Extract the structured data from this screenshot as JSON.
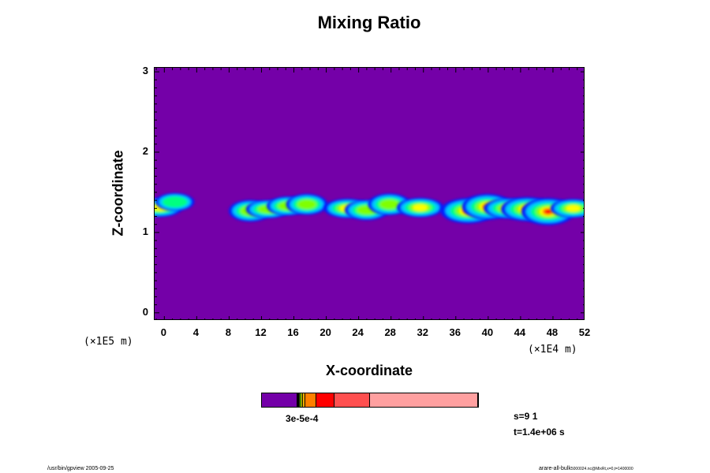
{
  "chart_data": {
    "type": "heatmap",
    "title": "Mixing Ratio",
    "xlabel": "X-coordinate",
    "ylabel": "Z-coordinate",
    "x_scale_note": "(×1E4 m)",
    "y_scale_note": "(×1E5 m)",
    "x_ticks": [
      "0",
      "4",
      "8",
      "12",
      "16",
      "20",
      "24",
      "28",
      "32",
      "36",
      "40",
      "44",
      "48",
      "52"
    ],
    "y_ticks": [
      "0",
      "1",
      "2",
      "3"
    ],
    "xlim": [
      -1.2,
      52
    ],
    "ylim": [
      -0.1,
      3.05
    ],
    "background_color": "#7400a8",
    "level_colors": [
      "#7400a8",
      "#0020ff",
      "#00c8ff",
      "#00ff80",
      "#80ff00",
      "#ffff00",
      "#ff8000",
      "#ff0000",
      "#ff5050",
      "#ffa0a0"
    ],
    "colorbar_label": "3e-5e-4",
    "layer_z_center": 1.3,
    "plumes": [
      {
        "x": -0.6,
        "z": 1.31,
        "intensity": 0.55
      },
      {
        "x": 1.3,
        "z": 1.38,
        "intensity": 0.3
      },
      {
        "x": 10.6,
        "z": 1.27,
        "intensity": 0.45
      },
      {
        "x": 12.8,
        "z": 1.29,
        "intensity": 0.5
      },
      {
        "x": 15.2,
        "z": 1.33,
        "intensity": 0.4
      },
      {
        "x": 17.6,
        "z": 1.35,
        "intensity": 0.4
      },
      {
        "x": 22.6,
        "z": 1.3,
        "intensity": 0.6
      },
      {
        "x": 25.0,
        "z": 1.28,
        "intensity": 0.5
      },
      {
        "x": 27.8,
        "z": 1.35,
        "intensity": 0.45
      },
      {
        "x": 31.6,
        "z": 1.31,
        "intensity": 0.6
      },
      {
        "x": 37.5,
        "z": 1.27,
        "intensity": 0.9
      },
      {
        "x": 39.9,
        "z": 1.32,
        "intensity": 0.75
      },
      {
        "x": 42.5,
        "z": 1.3,
        "intensity": 0.7
      },
      {
        "x": 44.8,
        "z": 1.29,
        "intensity": 0.8
      },
      {
        "x": 47.4,
        "z": 1.26,
        "intensity": 0.85
      },
      {
        "x": 50.5,
        "z": 1.3,
        "intensity": 0.55
      }
    ]
  },
  "colorbar": {
    "segments": [
      {
        "color": "#7400a8",
        "frac": 0.165
      },
      {
        "color": "#0020ff",
        "frac": 0.004
      },
      {
        "color": "#00c8ff",
        "frac": 0.004
      },
      {
        "color": "#00ff80",
        "frac": 0.004
      },
      {
        "color": "#80ff00",
        "frac": 0.004
      },
      {
        "color": "#ffff00",
        "frac": 0.008
      },
      {
        "color": "#ffb000",
        "frac": 0.012
      },
      {
        "color": "#ff8000",
        "frac": 0.05
      },
      {
        "color": "#ff0000",
        "frac": 0.085
      },
      {
        "color": "#ff5050",
        "frac": 0.165
      },
      {
        "color": "#ffa0a0",
        "frac": 0.499
      }
    ]
  },
  "info": {
    "step": "s=9 1",
    "time": "t=1.4e+06 s"
  },
  "footer": {
    "left": "/usr/bin/gpview 2005-09-25",
    "right": "arare-all-bulk",
    "right_small": "5000024.nc@MixRt,x=0,t=1400000"
  }
}
